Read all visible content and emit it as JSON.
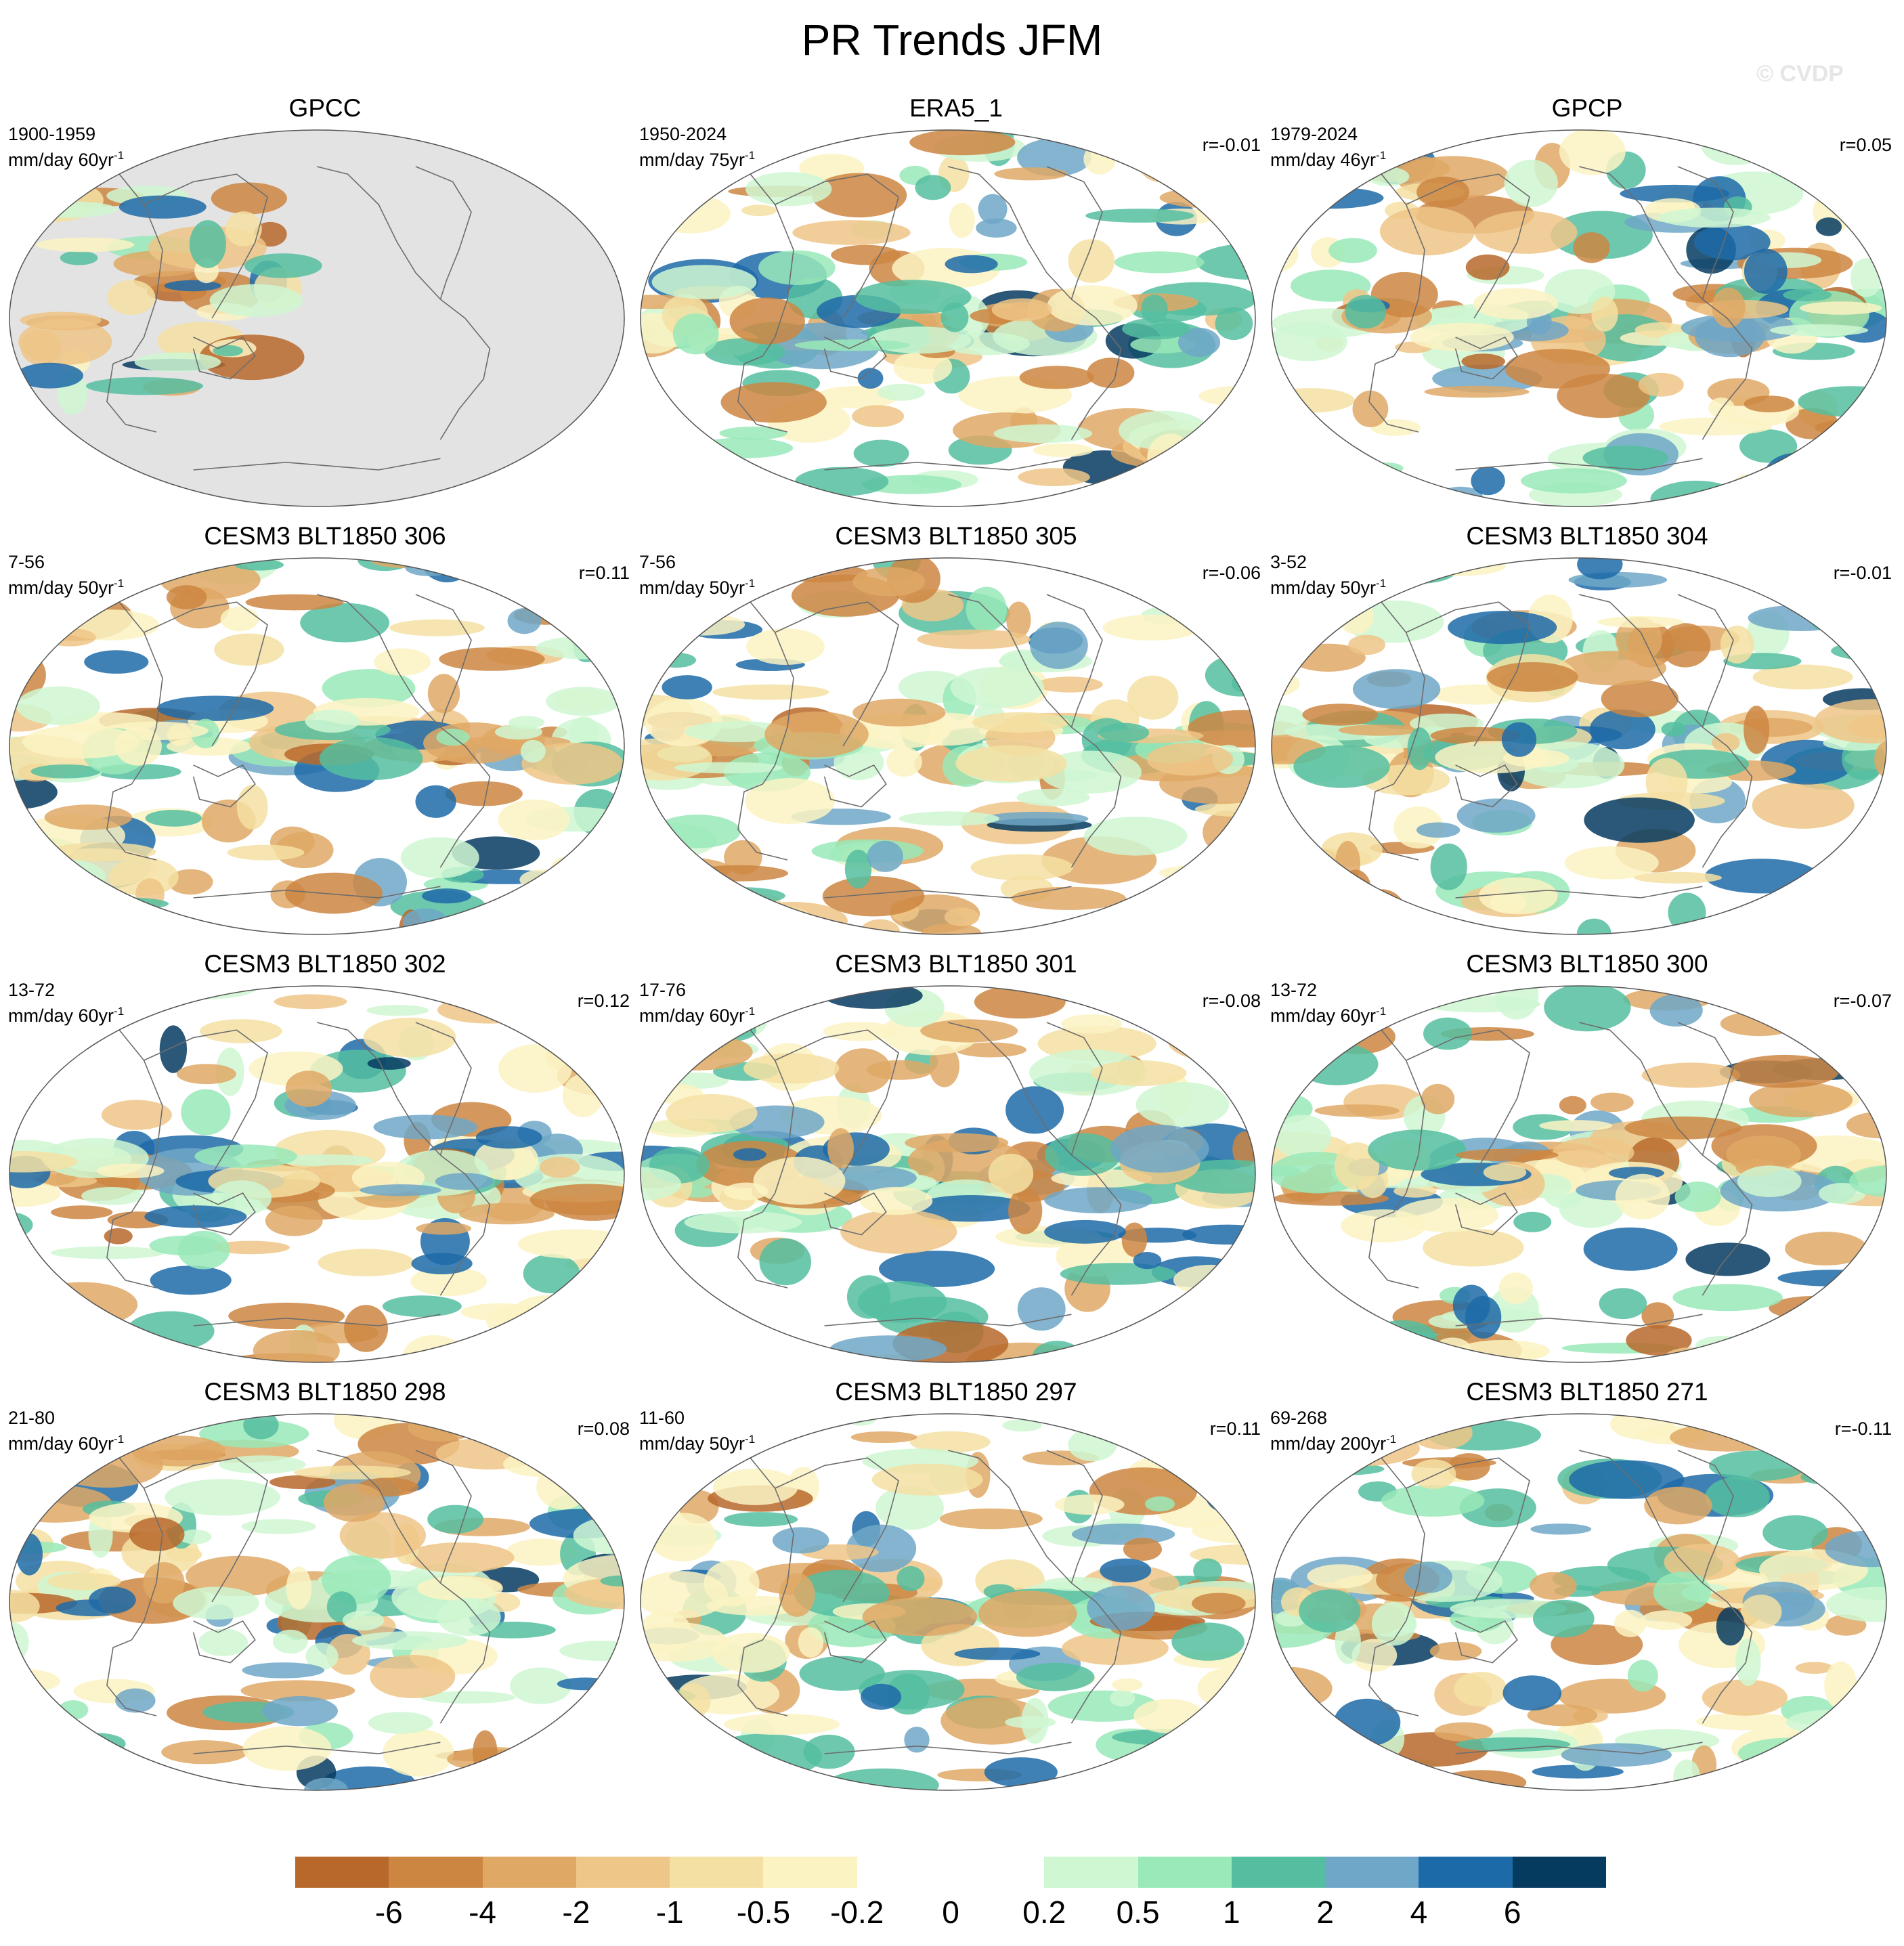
{
  "title": "PR Trends JFM",
  "watermark": "© CVDP",
  "colors": {
    "scale": [
      "#b9682b",
      "#cc8642",
      "#dfa865",
      "#eec687",
      "#f4e0a3",
      "#fcf3c3",
      "#ffffff",
      "#ffffff",
      "#cff7d2",
      "#99e9b9",
      "#55bea0",
      "#6ea7c7",
      "#1d6aa8",
      "#063b60"
    ],
    "land_mask": "#e3e3e3",
    "coast": "#6d6d6d"
  },
  "colorbar": {
    "labels": [
      "-6",
      "-4",
      "-2",
      "-1",
      "-0.5",
      "-0.2",
      "0",
      "0.2",
      "0.5",
      "1",
      "2",
      "4",
      "6"
    ]
  },
  "panels": [
    {
      "title": "GPCC",
      "years": "1900-1959",
      "units": "mm/day 60yr",
      "units_exp": "-1",
      "r": "",
      "masked": true
    },
    {
      "title": "ERA5_1",
      "years": "1950-2024",
      "units": "mm/day 75yr",
      "units_exp": "-1",
      "r": "r=-0.01",
      "masked": false
    },
    {
      "title": "GPCP",
      "years": "1979-2024",
      "units": "mm/day 46yr",
      "units_exp": "-1",
      "r": "r=0.05",
      "masked": false
    },
    {
      "title": "CESM3 BLT1850 306",
      "years": "7-56",
      "units": "mm/day 50yr",
      "units_exp": "-1",
      "r": "r=0.11",
      "masked": false
    },
    {
      "title": "CESM3 BLT1850 305",
      "years": "7-56",
      "units": "mm/day 50yr",
      "units_exp": "-1",
      "r": "r=-0.06",
      "masked": false
    },
    {
      "title": "CESM3 BLT1850 304",
      "years": "3-52",
      "units": "mm/day 50yr",
      "units_exp": "-1",
      "r": "r=-0.01",
      "masked": false
    },
    {
      "title": "CESM3 BLT1850 302",
      "years": "13-72",
      "units": "mm/day 60yr",
      "units_exp": "-1",
      "r": "r=0.12",
      "masked": false
    },
    {
      "title": "CESM3 BLT1850 301",
      "years": "17-76",
      "units": "mm/day 60yr",
      "units_exp": "-1",
      "r": "r=-0.08",
      "masked": false
    },
    {
      "title": "CESM3 BLT1850 300",
      "years": "13-72",
      "units": "mm/day 60yr",
      "units_exp": "-1",
      "r": "r=-0.07",
      "masked": false
    },
    {
      "title": "CESM3 BLT1850 298",
      "years": "21-80",
      "units": "mm/day 60yr",
      "units_exp": "-1",
      "r": "r=0.08",
      "masked": false
    },
    {
      "title": "CESM3 BLT1850 297",
      "years": "11-60",
      "units": "mm/day 50yr",
      "units_exp": "-1",
      "r": "r=0.11",
      "masked": false
    },
    {
      "title": "CESM3 BLT1850 271",
      "years": "69-268",
      "units": "mm/day 200yr",
      "units_exp": "-1",
      "r": "r=-0.11",
      "masked": false
    }
  ]
}
